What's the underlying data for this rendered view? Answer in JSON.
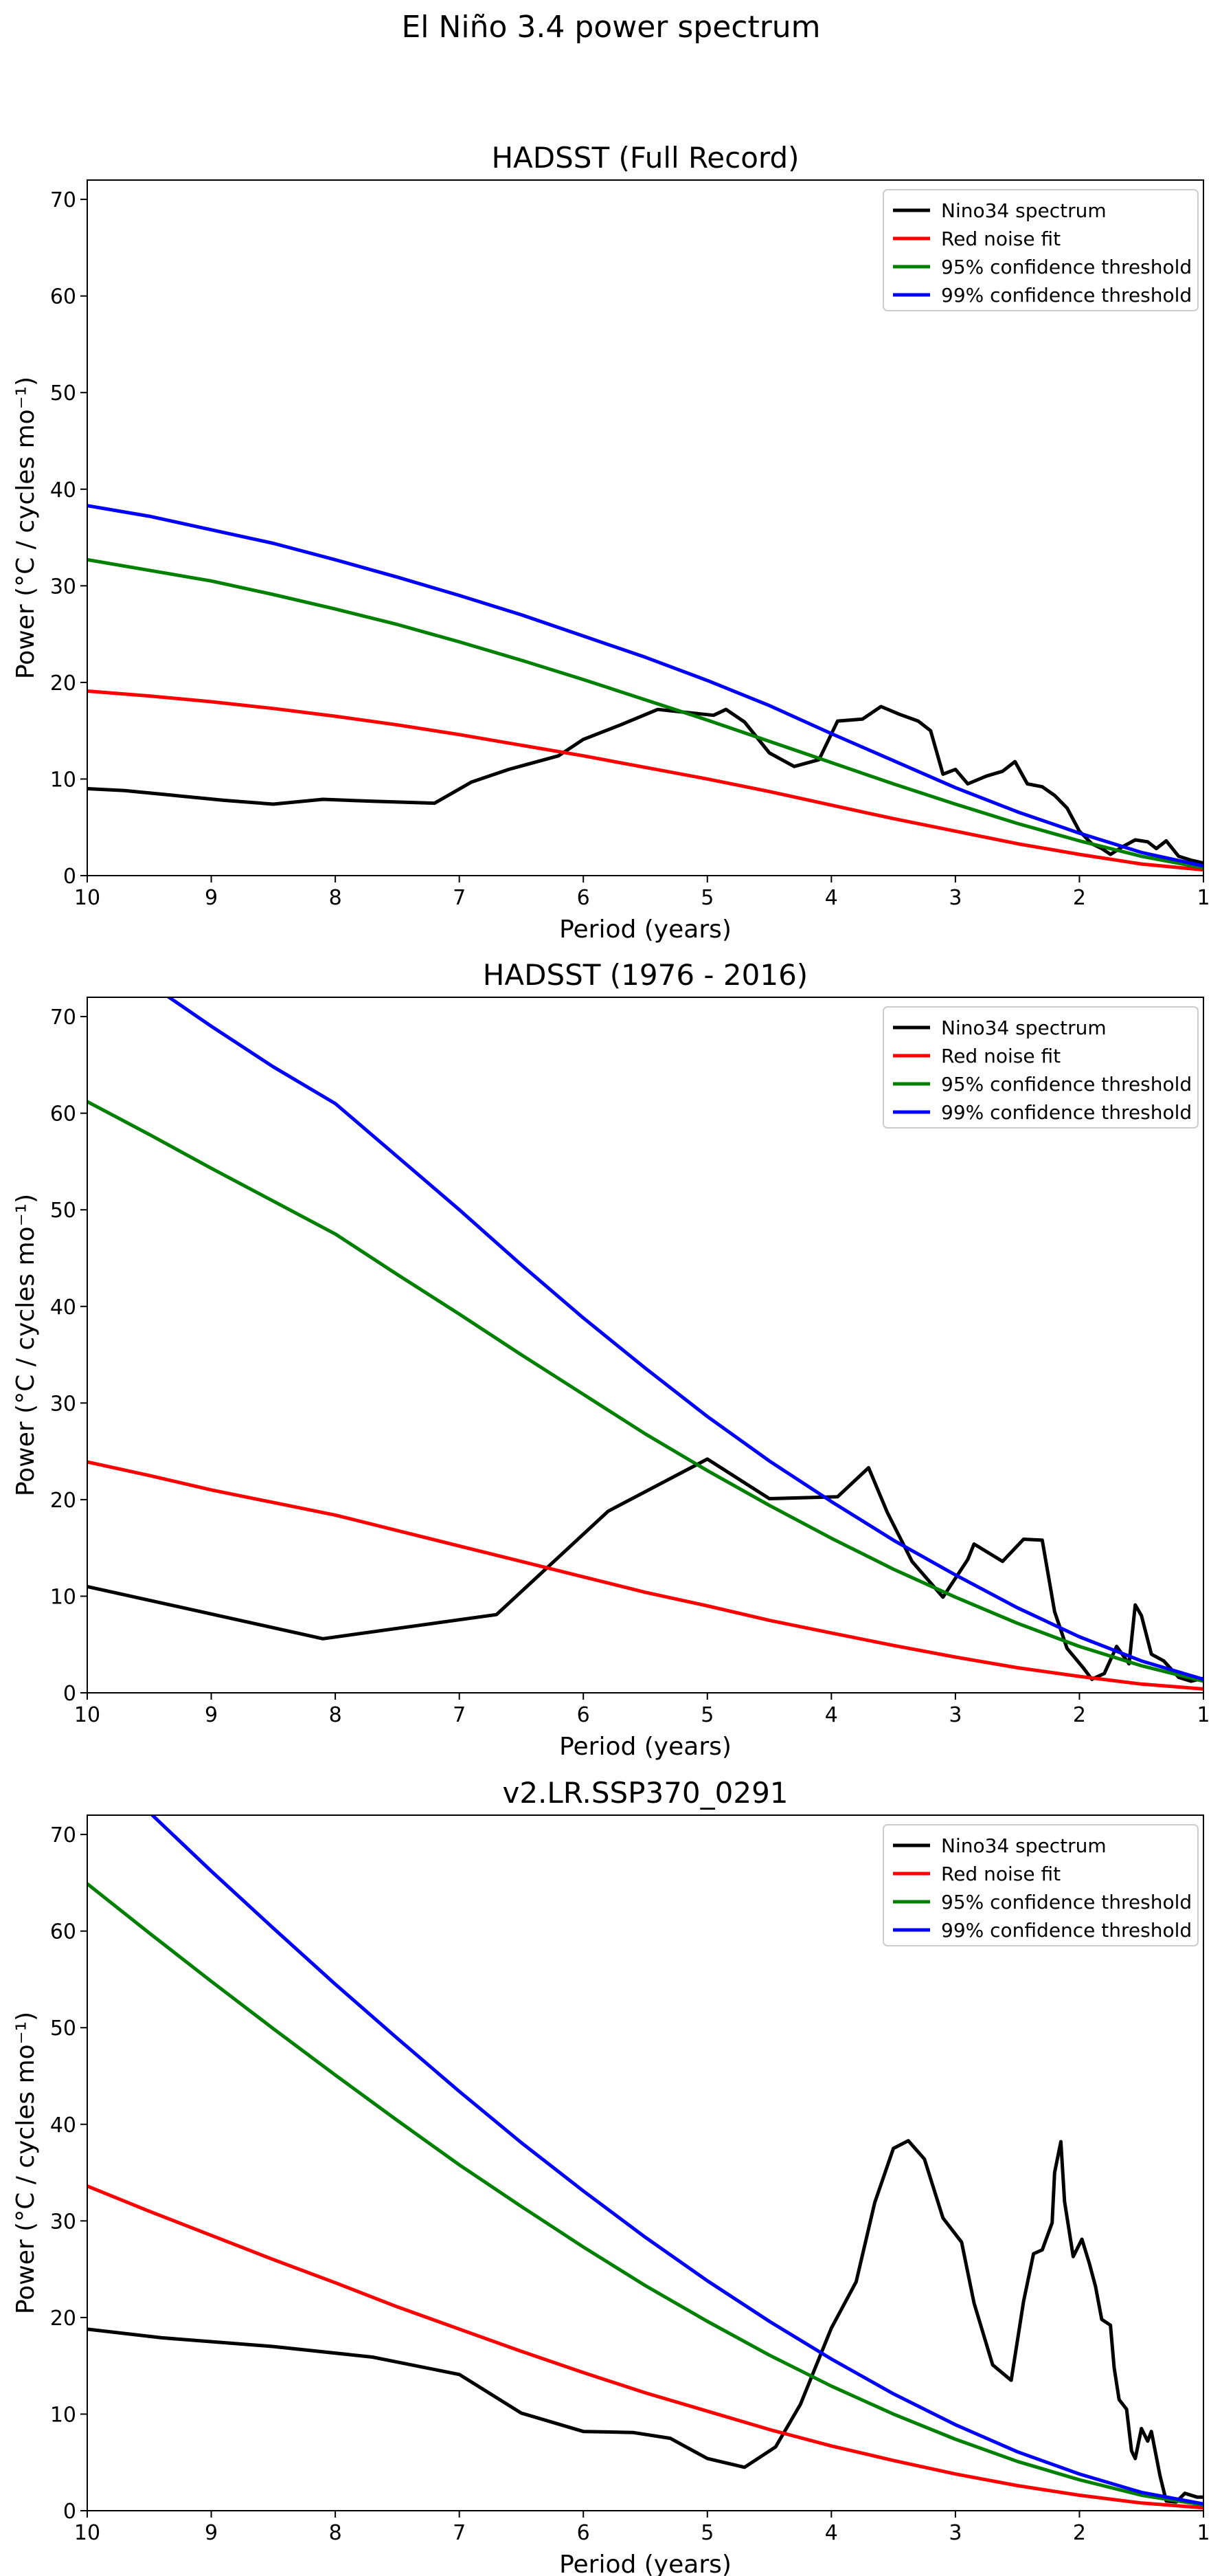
{
  "figure": {
    "suptitle": "El Niño 3.4 power spectrum"
  },
  "legend_entries": [
    {
      "label": "Nino34 spectrum",
      "color": "#000000"
    },
    {
      "label": "Red noise fit",
      "color": "#ff0000"
    },
    {
      "label": "95% confidence threshold",
      "color": "#008000"
    },
    {
      "label": "99% confidence threshold",
      "color": "#0000ff"
    }
  ],
  "chart_data": [
    {
      "type": "line",
      "title": "HADSST (Full Record)",
      "xlabel": "Period (years)",
      "ylabel": "Power (°C / cycles mo⁻¹)",
      "xlim": [
        10,
        1
      ],
      "ylim": [
        0,
        72
      ],
      "xticks": [
        10,
        9,
        8,
        7,
        6,
        5,
        4,
        3,
        2,
        1
      ],
      "yticks": [
        0,
        10,
        20,
        30,
        40,
        50,
        60,
        70
      ],
      "grid": false,
      "legend_position": "upper right",
      "series": [
        {
          "name": "Nino34 spectrum",
          "color": "#000000",
          "x": [
            10,
            9.7,
            9.3,
            8.9,
            8.5,
            8.1,
            7.7,
            7.2,
            6.9,
            6.6,
            6.2,
            6.0,
            5.7,
            5.4,
            5.1,
            4.95,
            4.85,
            4.7,
            4.5,
            4.3,
            4.1,
            3.95,
            3.75,
            3.6,
            3.45,
            3.3,
            3.2,
            3.1,
            3.0,
            2.9,
            2.75,
            2.62,
            2.52,
            2.42,
            2.3,
            2.2,
            2.1,
            2.0,
            1.9,
            1.82,
            1.75,
            1.65,
            1.55,
            1.45,
            1.38,
            1.3,
            1.2,
            1.1,
            1.0
          ],
          "y": [
            9.0,
            8.8,
            8.3,
            7.8,
            7.4,
            7.9,
            7.7,
            7.5,
            9.7,
            11.0,
            12.4,
            14.1,
            15.6,
            17.2,
            16.8,
            16.6,
            17.2,
            15.9,
            12.7,
            11.3,
            12.0,
            16.0,
            16.2,
            17.5,
            16.7,
            16.0,
            15.0,
            10.5,
            11.0,
            9.5,
            10.3,
            10.8,
            11.8,
            9.5,
            9.2,
            8.3,
            7.0,
            4.6,
            3.3,
            2.8,
            2.2,
            3.0,
            3.7,
            3.5,
            2.8,
            3.6,
            2.0,
            1.6,
            1.3
          ]
        },
        {
          "name": "Red noise fit",
          "color": "#ff0000",
          "x": [
            10,
            9.5,
            9,
            8.5,
            8,
            7.5,
            7,
            6.5,
            6,
            5.5,
            5,
            4.5,
            4,
            3.5,
            3,
            2.5,
            2,
            1.5,
            1
          ],
          "y": [
            19.1,
            18.6,
            18.0,
            17.3,
            16.5,
            15.6,
            14.6,
            13.5,
            12.4,
            11.2,
            10.0,
            8.7,
            7.3,
            5.9,
            4.6,
            3.3,
            2.2,
            1.2,
            0.6
          ]
        },
        {
          "name": "95% confidence threshold",
          "color": "#008000",
          "x": [
            10,
            9.5,
            9,
            8.5,
            8,
            7.5,
            7,
            6.5,
            6,
            5.5,
            5,
            4.5,
            4,
            3.5,
            3,
            2.5,
            2,
            1.5,
            1
          ],
          "y": [
            32.7,
            31.6,
            30.5,
            29.1,
            27.6,
            26.0,
            24.2,
            22.3,
            20.3,
            18.2,
            16.1,
            13.9,
            11.7,
            9.5,
            7.4,
            5.4,
            3.6,
            2.0,
            0.8
          ]
        },
        {
          "name": "99% confidence threshold",
          "color": "#0000ff",
          "x": [
            10,
            9.5,
            9,
            8.5,
            8,
            7.5,
            7,
            6.5,
            6,
            5.5,
            5,
            4.5,
            4,
            3.5,
            3,
            2.5,
            2,
            1.5,
            1
          ],
          "y": [
            38.3,
            37.2,
            35.8,
            34.4,
            32.7,
            30.9,
            29.0,
            27.0,
            24.8,
            22.6,
            20.2,
            17.6,
            14.7,
            11.9,
            9.1,
            6.6,
            4.4,
            2.4,
            1.0
          ]
        }
      ]
    },
    {
      "type": "line",
      "title": "HADSST (1976 - 2016)",
      "xlabel": "Period (years)",
      "ylabel": "Power (°C / cycles mo⁻¹)",
      "xlim": [
        10,
        1
      ],
      "ylim": [
        0,
        72
      ],
      "xticks": [
        10,
        9,
        8,
        7,
        6,
        5,
        4,
        3,
        2,
        1
      ],
      "yticks": [
        0,
        10,
        20,
        30,
        40,
        50,
        60,
        70
      ],
      "grid": false,
      "legend_position": "upper right",
      "series": [
        {
          "name": "Nino34 spectrum",
          "color": "#000000",
          "x": [
            10,
            8.1,
            6.7,
            5.8,
            5.0,
            4.5,
            3.95,
            3.7,
            3.55,
            3.35,
            3.1,
            2.9,
            2.85,
            2.62,
            2.45,
            2.3,
            2.2,
            2.1,
            1.97,
            1.9,
            1.8,
            1.7,
            1.6,
            1.55,
            1.5,
            1.42,
            1.32,
            1.2,
            1.1,
            1.0
          ],
          "y": [
            11.0,
            5.6,
            8.1,
            18.8,
            24.2,
            20.1,
            20.3,
            23.3,
            18.7,
            13.6,
            9.9,
            13.8,
            15.4,
            13.6,
            15.9,
            15.8,
            8.4,
            4.6,
            2.6,
            1.4,
            2.0,
            4.8,
            3.0,
            9.1,
            8.0,
            4.0,
            3.3,
            1.6,
            1.2,
            1.5
          ]
        },
        {
          "name": "Red noise fit",
          "color": "#ff0000",
          "x": [
            10,
            9.5,
            9,
            8.5,
            8,
            7.5,
            7,
            6.5,
            6,
            5.5,
            5,
            4.5,
            4,
            3.5,
            3,
            2.5,
            2,
            1.5,
            1
          ],
          "y": [
            23.9,
            22.5,
            21.0,
            19.7,
            18.4,
            16.8,
            15.2,
            13.6,
            12.0,
            10.4,
            9.0,
            7.5,
            6.2,
            4.9,
            3.7,
            2.6,
            1.7,
            0.9,
            0.4
          ]
        },
        {
          "name": "95% confidence threshold",
          "color": "#008000",
          "x": [
            10,
            9.5,
            9,
            8.5,
            8,
            7.5,
            7,
            6.5,
            6,
            5.5,
            5,
            4.5,
            4,
            3.5,
            3,
            2.5,
            2,
            1.5,
            1
          ],
          "y": [
            61.2,
            57.8,
            54.3,
            50.9,
            47.5,
            43.3,
            39.2,
            35.0,
            30.9,
            26.8,
            23.0,
            19.4,
            16.0,
            12.8,
            9.9,
            7.2,
            4.8,
            2.8,
            1.2
          ]
        },
        {
          "name": "99% confidence threshold",
          "color": "#0000ff",
          "x": [
            10,
            9.5,
            9,
            8.5,
            8,
            7.5,
            7,
            6.5,
            6,
            5.5,
            5,
            4.5,
            4,
            3.5,
            3,
            2.5,
            2,
            1.5,
            1
          ],
          "y": [
            78.0,
            73.4,
            69.0,
            64.8,
            61.0,
            55.5,
            50.0,
            44.3,
            38.8,
            33.6,
            28.6,
            24.0,
            19.8,
            15.8,
            12.2,
            8.8,
            5.8,
            3.3,
            1.4
          ]
        }
      ]
    },
    {
      "type": "line",
      "title": "v2.LR.SSP370_0291",
      "xlabel": "Period (years)",
      "ylabel": "Power (°C / cycles mo⁻¹)",
      "xlim": [
        10,
        1
      ],
      "ylim": [
        0,
        72
      ],
      "xticks": [
        10,
        9,
        8,
        7,
        6,
        5,
        4,
        3,
        2,
        1
      ],
      "yticks": [
        0,
        10,
        20,
        30,
        40,
        50,
        60,
        70
      ],
      "grid": false,
      "legend_position": "upper right",
      "series": [
        {
          "name": "Nino34 spectrum",
          "color": "#000000",
          "x": [
            10,
            9.4,
            8.5,
            7.7,
            7.0,
            6.5,
            6.0,
            5.6,
            5.3,
            5.0,
            4.7,
            4.45,
            4.25,
            4.0,
            3.8,
            3.65,
            3.5,
            3.38,
            3.25,
            3.1,
            2.95,
            2.85,
            2.7,
            2.55,
            2.45,
            2.37,
            2.3,
            2.22,
            2.2,
            2.15,
            2.12,
            2.05,
            1.98,
            1.92,
            1.87,
            1.82,
            1.75,
            1.72,
            1.68,
            1.62,
            1.58,
            1.55,
            1.5,
            1.45,
            1.42,
            1.35,
            1.3,
            1.22,
            1.15,
            1.05,
            1.0
          ],
          "y": [
            18.8,
            17.9,
            17.0,
            15.9,
            14.1,
            10.1,
            8.2,
            8.1,
            7.5,
            5.4,
            4.5,
            6.6,
            11.0,
            18.9,
            23.7,
            31.9,
            37.5,
            38.3,
            36.4,
            30.3,
            27.8,
            21.5,
            15.1,
            13.5,
            21.7,
            26.6,
            27.0,
            29.8,
            35.0,
            38.2,
            32.0,
            26.3,
            28.1,
            25.6,
            23.2,
            19.8,
            19.2,
            14.8,
            11.5,
            10.5,
            6.2,
            5.4,
            8.5,
            7.2,
            8.2,
            3.6,
            1.0,
            0.9,
            1.8,
            1.4,
            1.4
          ]
        },
        {
          "name": "Red noise fit",
          "color": "#ff0000",
          "x": [
            10,
            9.5,
            9,
            8.5,
            8,
            7.5,
            7,
            6.5,
            6,
            5.5,
            5,
            4.5,
            4,
            3.5,
            3,
            2.5,
            2,
            1.5,
            1
          ],
          "y": [
            33.6,
            31.0,
            28.5,
            26.0,
            23.6,
            21.1,
            18.8,
            16.5,
            14.3,
            12.2,
            10.3,
            8.4,
            6.7,
            5.2,
            3.8,
            2.6,
            1.6,
            0.8,
            0.3
          ]
        },
        {
          "name": "95% confidence threshold",
          "color": "#008000",
          "x": [
            10,
            9.5,
            9,
            8.5,
            8,
            7.5,
            7,
            6.5,
            6,
            5.5,
            5,
            4.5,
            4,
            3.5,
            3,
            2.5,
            2,
            1.5,
            1
          ],
          "y": [
            64.9,
            59.8,
            54.8,
            49.9,
            45.1,
            40.4,
            35.8,
            31.5,
            27.3,
            23.3,
            19.6,
            16.1,
            12.9,
            10.0,
            7.4,
            5.1,
            3.2,
            1.6,
            0.6
          ]
        },
        {
          "name": "99% confidence threshold",
          "color": "#0000ff",
          "x": [
            10,
            9.5,
            9,
            8.5,
            8,
            7.5,
            7,
            6.5,
            6,
            5.5,
            5,
            4.5,
            4,
            3.5,
            3,
            2.5,
            2,
            1.5,
            1
          ],
          "y": [
            78.5,
            72.3,
            66.2,
            60.3,
            54.5,
            48.9,
            43.4,
            38.1,
            33.1,
            28.3,
            23.8,
            19.6,
            15.7,
            12.1,
            8.9,
            6.1,
            3.8,
            1.9,
            0.7
          ]
        }
      ]
    }
  ]
}
